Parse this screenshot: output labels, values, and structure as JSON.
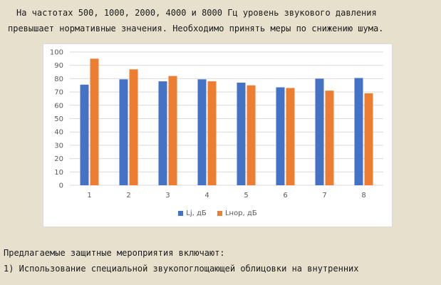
{
  "text": {
    "line1": "На частотах 500, 1000, 2000, 4000 и 8000 Гц уровень звукового давления",
    "line2": "превышает нормативные значения. Необходимо принять меры по снижению шума.",
    "line3": "Предлагаемые защитные мероприятия включают:",
    "line4": "1) Использование специальной звукопоглощающей облицовки на внутренних"
  },
  "colors": {
    "series1": "#4472c4",
    "series2": "#ed7d31",
    "grid": "#d9d9d9",
    "background": "#e6e0cd"
  },
  "chart_data": {
    "type": "bar",
    "title": "",
    "xlabel": "",
    "ylabel": "",
    "categories": [
      "1",
      "2",
      "3",
      "4",
      "5",
      "6",
      "7",
      "8"
    ],
    "series": [
      {
        "name": "Lj, дБ",
        "values": [
          75.5,
          79.5,
          78,
          79.5,
          77,
          73.5,
          80,
          80.5
        ]
      },
      {
        "name": "Lнор, дБ",
        "values": [
          95,
          87,
          82,
          78,
          75,
          73,
          71,
          69
        ]
      }
    ],
    "ylim": [
      0,
      100
    ],
    "yticks": [
      0,
      10,
      20,
      30,
      40,
      50,
      60,
      70,
      80,
      90,
      100
    ],
    "grid": true,
    "legend": "bottom"
  }
}
